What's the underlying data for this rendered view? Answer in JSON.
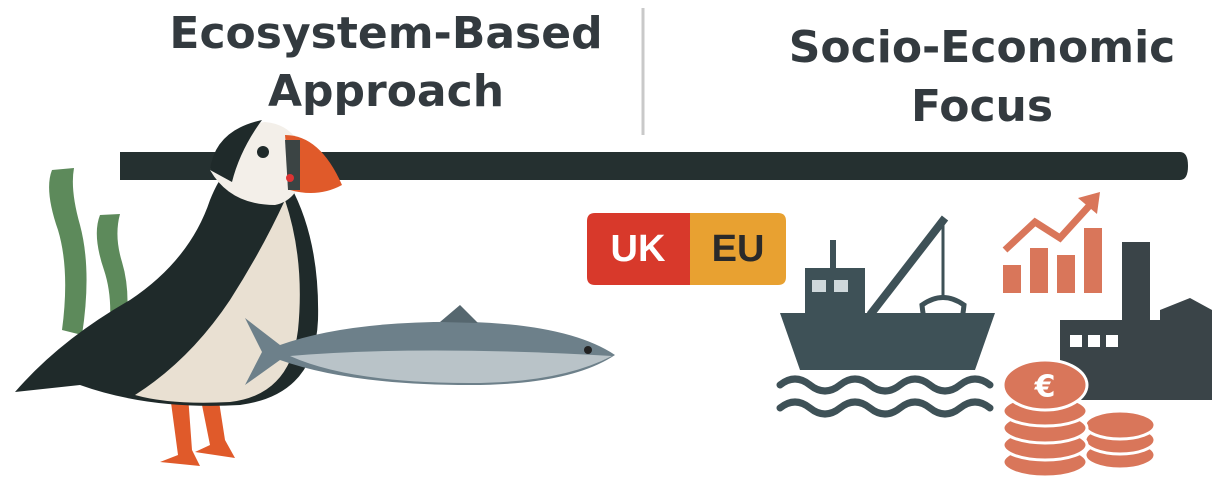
{
  "left_title": {
    "lines": [
      "Ecosystem-Based",
      "Approach"
    ]
  },
  "right_title": {
    "lines": [
      "Socio-Economic",
      "Focus"
    ]
  },
  "badge": {
    "left": "UK",
    "right": "EU"
  },
  "coin_symbol": "€"
}
